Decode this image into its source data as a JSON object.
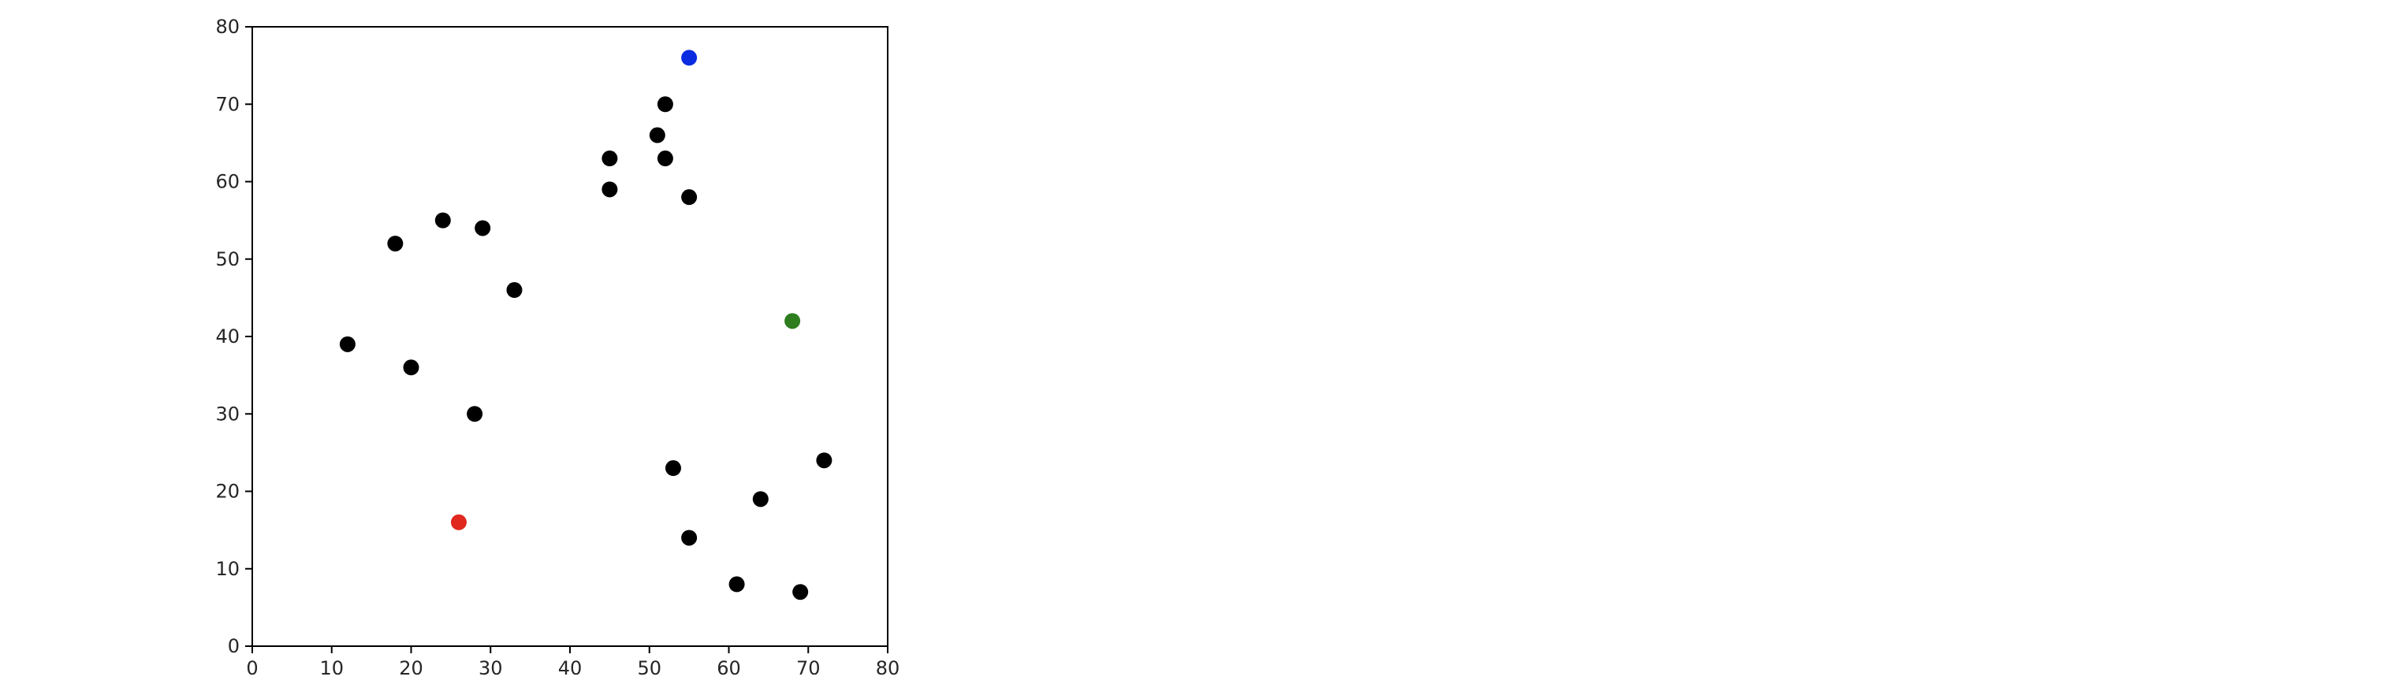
{
  "chart_data": {
    "type": "scatter",
    "title": "",
    "xlabel": "",
    "ylabel": "",
    "xlim": [
      0,
      80
    ],
    "ylim": [
      0,
      80
    ],
    "xticks": [
      0,
      10,
      20,
      30,
      40,
      50,
      60,
      70,
      80
    ],
    "yticks": [
      0,
      10,
      20,
      30,
      40,
      50,
      60,
      70,
      80
    ],
    "grid": false,
    "legend": "none",
    "series": [
      {
        "color": "#000000",
        "points": [
          {
            "x": 52,
            "y": 70
          },
          {
            "x": 51,
            "y": 66
          },
          {
            "x": 45,
            "y": 63
          },
          {
            "x": 52,
            "y": 63
          },
          {
            "x": 45,
            "y": 59
          },
          {
            "x": 55,
            "y": 58
          },
          {
            "x": 24,
            "y": 55
          },
          {
            "x": 29,
            "y": 54
          },
          {
            "x": 18,
            "y": 52
          },
          {
            "x": 33,
            "y": 46
          },
          {
            "x": 12,
            "y": 39
          },
          {
            "x": 20,
            "y": 36
          },
          {
            "x": 28,
            "y": 30
          },
          {
            "x": 72,
            "y": 24
          },
          {
            "x": 53,
            "y": 23
          },
          {
            "x": 64,
            "y": 19
          },
          {
            "x": 55,
            "y": 14
          },
          {
            "x": 61,
            "y": 8
          },
          {
            "x": 69,
            "y": 7
          }
        ]
      },
      {
        "color": "#0a2ce0",
        "points": [
          {
            "x": 55,
            "y": 76
          }
        ]
      },
      {
        "color": "#2e7d1e",
        "points": [
          {
            "x": 68,
            "y": 42
          }
        ]
      },
      {
        "color": "#e0281e",
        "points": [
          {
            "x": 26,
            "y": 16
          }
        ]
      }
    ]
  }
}
